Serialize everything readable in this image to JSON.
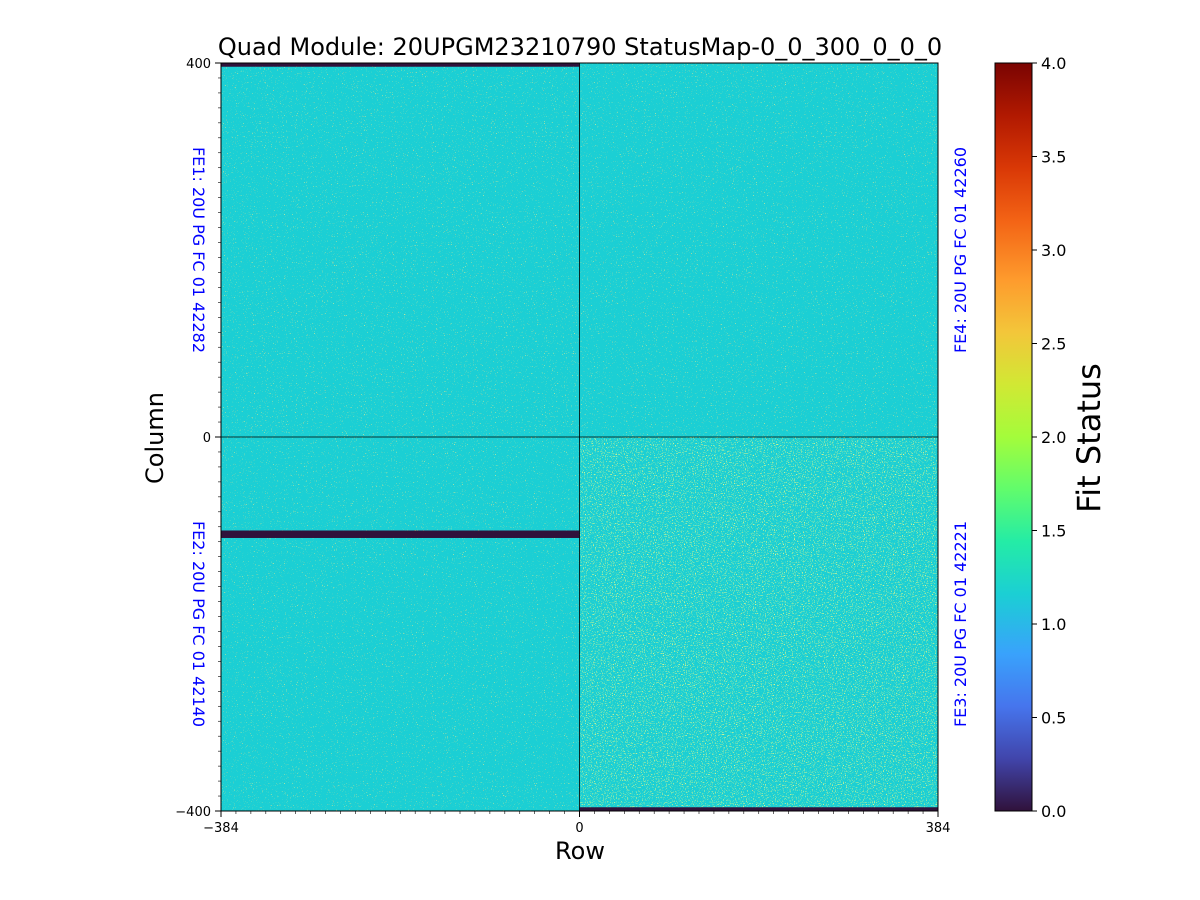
{
  "chart_data": {
    "type": "heatmap",
    "title": "Quad Module: 20UPGM23210790 StatusMap-0_0_300_0_0_0",
    "xlabel": "Row",
    "ylabel": "Column",
    "xlim": [
      -384,
      384
    ],
    "ylim": [
      -400,
      400
    ],
    "x_ticks": [
      "−384",
      "0",
      "384"
    ],
    "y_ticks": [
      "400",
      "0",
      "−400"
    ],
    "colorbar": {
      "label": "Fit Status",
      "range": [
        0.0,
        4.0
      ],
      "ticks": [
        "0.0",
        "0.5",
        "1.0",
        "1.5",
        "2.0",
        "2.5",
        "3.0",
        "3.5",
        "4.0"
      ],
      "colormap": "turbo"
    },
    "quadrants": [
      {
        "name": "FE1: 20U PG FC 01 42282",
        "position": "top-left",
        "x_range": [
          -384,
          0
        ],
        "y_range": [
          0,
          400
        ],
        "dominant_status": 1.0,
        "dead_rows": [
          [
            396,
            400
          ]
        ]
      },
      {
        "name": "FE4: 20U PG FC 01 42260",
        "position": "top-right",
        "x_range": [
          0,
          384
        ],
        "y_range": [
          0,
          400
        ],
        "dominant_status": 1.0,
        "dead_rows": []
      },
      {
        "name": "FE2: 20U PG FC 01 42140",
        "position": "bottom-left",
        "x_range": [
          -384,
          0
        ],
        "y_range": [
          -400,
          0
        ],
        "dominant_status": 1.0,
        "dead_rows": [
          [
            -108,
            -100
          ]
        ]
      },
      {
        "name": "FE3: 20U PG FC 01 42221",
        "position": "bottom-right",
        "x_range": [
          0,
          384
        ],
        "y_range": [
          -400,
          0
        ],
        "dominant_status": 1.0,
        "dead_rows": [
          [
            -400,
            -396
          ]
        ]
      }
    ]
  }
}
